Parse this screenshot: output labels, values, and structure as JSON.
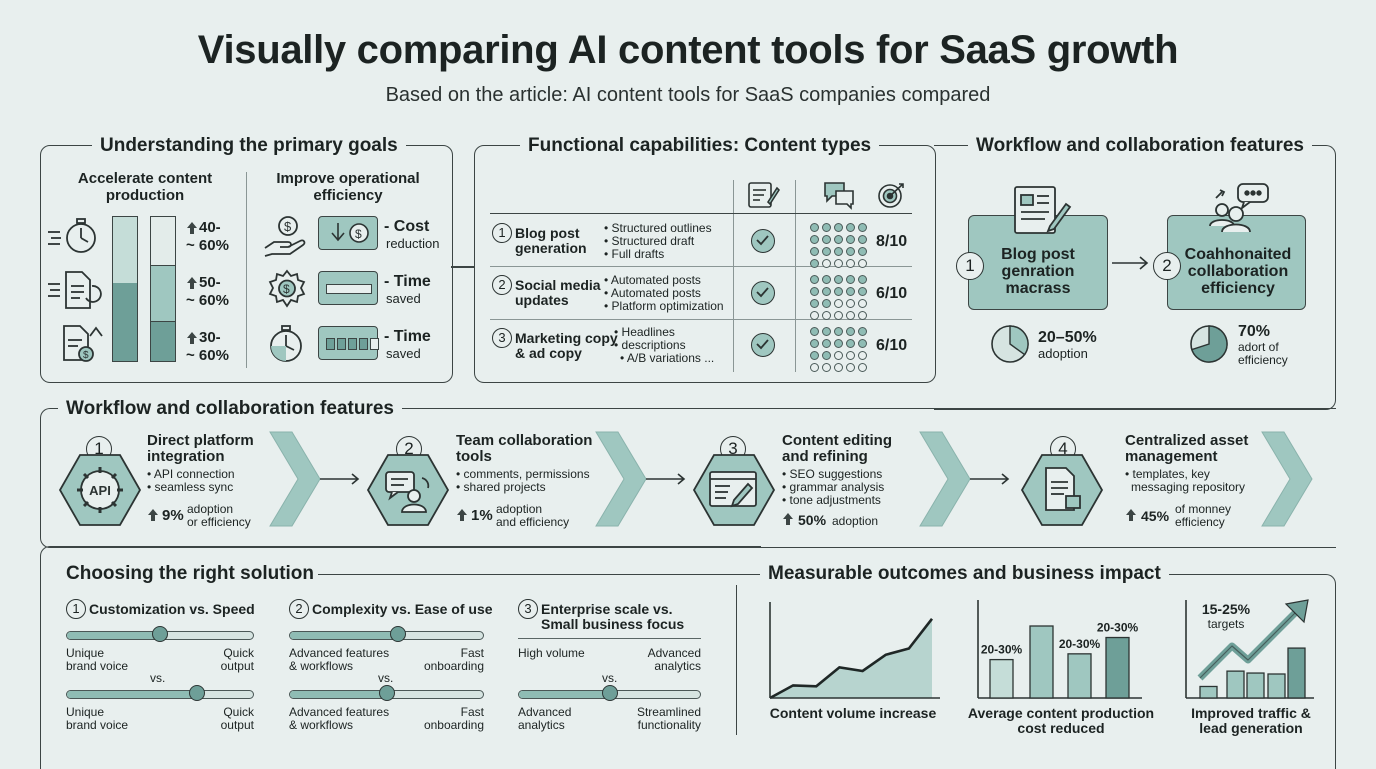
{
  "title": "Visually comparing AI content tools for SaaS growth",
  "subtitle": "Based on the article: AI content tools for SaaS companies compared",
  "goals": {
    "heading": "Understanding the primary goals",
    "col1_title": "Accelerate content production",
    "col2_title": "Improve operational efficiency",
    "bars": [
      {
        "label_a": "40-",
        "label_b": "~ 60%",
        "fill": 0.4
      },
      {
        "label_a": "50-",
        "label_b": "~ 60%",
        "fill": 0.55
      },
      {
        "label_a": "30-",
        "label_b": "~ 60%",
        "fill": 0.3
      }
    ],
    "efficiency": [
      {
        "title": "- Cost",
        "sub": "reduction"
      },
      {
        "title": "- Time",
        "sub": "saved"
      },
      {
        "title": "- Time",
        "sub": "saved"
      }
    ]
  },
  "capabilities": {
    "heading": "Functional capabilities: Content types",
    "rows": [
      {
        "num": "1",
        "name_a": "Blog post",
        "name_b": "generation",
        "bullets": [
          "• Structured outlines",
          "• Structured draft",
          "• Full drafts"
        ],
        "score": "8/10",
        "filled": 16
      },
      {
        "num": "2",
        "name_a": "Social media",
        "name_b": "updates",
        "bullets": [
          "• Automated posts",
          "• Automated posts",
          "• Platform optimization"
        ],
        "score": "6/10",
        "filled": 12
      },
      {
        "num": "3",
        "name_a": "Marketing copy",
        "name_b": "& ad copy",
        "bullets": [
          "• Headlines",
          "• descriptions",
          "• A/B variations ..."
        ],
        "score": "6/10",
        "filled": 12
      }
    ]
  },
  "workflow_top": {
    "heading": "Workflow and collaboration features",
    "card1": {
      "num": "1",
      "lines": [
        "Blog post",
        "genration",
        "macrass"
      ],
      "pct": "20–50%",
      "sub": "adoption",
      "fill": 0.35
    },
    "card2": {
      "num": "2",
      "lines": [
        "Coahhonaited",
        "collaboration",
        "efficiency"
      ],
      "pct": "70%",
      "sub_a": "adort of",
      "sub_b": "efficiency",
      "fill": 0.7
    }
  },
  "workflow_steps": {
    "heading": "Workflow and collaboration features",
    "steps": [
      {
        "num": "1",
        "title_a": "Direct platform",
        "title_b": "integration",
        "bullets": [
          "• API connection",
          "• seamless sync"
        ],
        "pct": "9%",
        "note_a": "adoption",
        "note_b": "or efficiency",
        "icon_text": "API"
      },
      {
        "num": "2",
        "title_a": "Team collaboration",
        "title_b": "tools",
        "bullets": [
          "• comments, permissions",
          "• shared projects"
        ],
        "pct": "1%",
        "note_a": "adoption",
        "note_b": "and efficiency"
      },
      {
        "num": "3",
        "title_a": "Content editing",
        "title_b": "and refining",
        "bullets": [
          "• SEO suggestions",
          "• grammar analysis",
          "• tone adjustments"
        ],
        "pct": "50%",
        "note_a": "adoption",
        "note_b": ""
      },
      {
        "num": "4",
        "title_a": "Centralized asset",
        "title_b": "management",
        "bullets": [
          "• templates, key",
          "  messaging repository"
        ],
        "pct": "45%",
        "note_a": "of monney",
        "note_b": "efficiency"
      }
    ]
  },
  "choosing": {
    "heading": "Choosing the right solution",
    "groups": [
      {
        "num": "1",
        "title_a": "Customization vs. Speed",
        "title_b": "",
        "s1": {
          "left_a": "Unique",
          "left_b": "brand voice",
          "right_a": "Quick",
          "right_b": "output",
          "value": 0.5
        },
        "vs": "vs.",
        "s2": {
          "left_a": "Unique",
          "left_b": "brand voice",
          "right_a": "Quick",
          "right_b": "output",
          "value": 0.7
        }
      },
      {
        "num": "2",
        "title_a": "Complexity vs. Ease of use",
        "title_b": "",
        "s1": {
          "left_a": "Advanced features",
          "left_b": "& workflows",
          "right_a": "Fast",
          "right_b": "onboarding",
          "value": 0.56
        },
        "vs": "vs.",
        "s2": {
          "left_a": "Advanced features",
          "left_b": "& workflows",
          "right_a": "Fast",
          "right_b": "onboarding",
          "value": 0.5
        }
      },
      {
        "num": "3",
        "title_a": "Enterprise scale vs.",
        "title_b": "Small business focus",
        "s1": {
          "left_a": "High volume",
          "left_b": "",
          "right_a": "Advanced",
          "right_b": "analytics",
          "value": null
        },
        "vs": "vs.",
        "s2": {
          "left_a": "Advanced",
          "left_b": "analytics",
          "right_a": "Streamlined",
          "right_b": "functionality",
          "value": 0.5
        }
      }
    ]
  },
  "outcomes": {
    "heading": "Measurable outcomes and business impact",
    "charts": [
      {
        "caption_a": "Content volume increase",
        "caption_b": ""
      },
      {
        "caption_a": "Average content production",
        "caption_b": "cost reduced"
      },
      {
        "caption_a": "Improved traffic &",
        "caption_b": "lead generation"
      }
    ]
  },
  "chart_data": [
    {
      "type": "area",
      "title": "",
      "xlabel": "",
      "ylabel": "",
      "caption": "Content volume increase",
      "x": [
        1,
        2,
        3,
        4,
        5,
        6,
        7,
        8
      ],
      "values": [
        0,
        14,
        13,
        34,
        30,
        48,
        55,
        88
      ],
      "ylim": [
        0,
        100
      ]
    },
    {
      "type": "bar",
      "title": "",
      "caption": "Average content production cost reduced",
      "categories": [
        "1",
        "2",
        "3",
        "4"
      ],
      "values": [
        40,
        75,
        46,
        63
      ],
      "ylim": [
        0,
        100
      ],
      "labels": [
        "20-30%",
        "",
        "20-30%",
        "20-30%"
      ]
    },
    {
      "type": "bar",
      "title": "",
      "caption": "Improved traffic & lead generation",
      "categories": [
        "1",
        "2",
        "3",
        "4",
        "5"
      ],
      "values": [
        12,
        28,
        26,
        25,
        52
      ],
      "ylim": [
        0,
        100
      ],
      "annotation_a": "15-25%",
      "annotation_b": "targets"
    }
  ]
}
